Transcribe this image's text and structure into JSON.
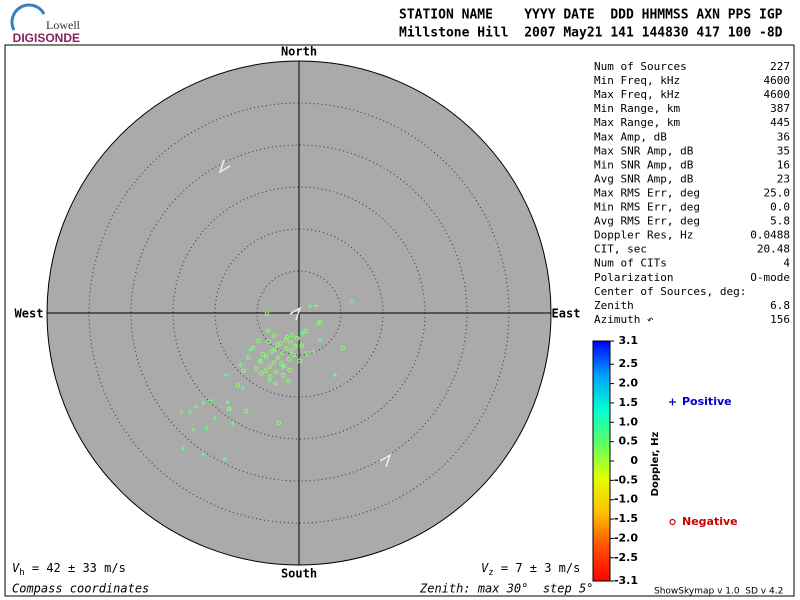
{
  "header": {
    "logo_top": "Lowell",
    "logo_bottom": "DIGISONDE",
    "line1": "STATION NAME    YYYY DATE  DDD HHMMSS AXN PPS IGP",
    "line2": "Millstone Hill  2007 May21 141 144830 417 100 -8D"
  },
  "stats": [
    [
      "Num of Sources",
      "227"
    ],
    [
      "Min Freq, kHz",
      "4600"
    ],
    [
      "Max Freq, kHz",
      "4600"
    ],
    [
      "Min Range, km",
      "387"
    ],
    [
      "Max Range, km",
      "445"
    ],
    [
      "Max Amp, dB",
      "36"
    ],
    [
      "Max SNR Amp, dB",
      "35"
    ],
    [
      "Min SNR Amp, dB",
      "16"
    ],
    [
      "Avg SNR Amp, dB",
      "23"
    ],
    [
      "Max RMS Err, deg",
      "25.0"
    ],
    [
      "Min RMS Err, deg",
      "0.0"
    ],
    [
      "Avg RMS Err, deg",
      "5.8"
    ],
    [
      "Doppler Res, Hz",
      "0.0488"
    ],
    [
      "CIT, sec",
      "20.48"
    ],
    [
      "Num of CITs",
      "4"
    ],
    [
      "Polarization",
      "O-mode"
    ],
    [
      "Center of Sources, deg:",
      ""
    ],
    [
      "     Zenith",
      "6.8"
    ],
    [
      "     Azimuth ↶",
      "156"
    ]
  ],
  "chart_data": {
    "type": "skymap",
    "compass": {
      "north": "North",
      "south": "South",
      "west": "West",
      "east": "East"
    },
    "rlim": [
      0,
      30
    ],
    "rticks": [
      5,
      10,
      15,
      20,
      25,
      30
    ],
    "series": [
      {
        "name": "Positive",
        "marker": "plus",
        "color": "#0000cc",
        "point_color": "#66ff88",
        "x": [
          -13.8,
          -13.0,
          -14.0,
          -12.6,
          -11.4,
          -10.5,
          -11.0,
          -8.8,
          -11.4,
          -8.2,
          -7.9,
          -8.7,
          -6.7,
          -5.8,
          4.3,
          6.3,
          2.3,
          1.3,
          -1.9,
          -4.6,
          -3.5,
          2.5,
          1.7,
          -0.4,
          -7.0,
          -12.3,
          -10.0,
          -8.5,
          0.4,
          2.0
        ],
        "y": [
          -16.1,
          -11.8,
          -11.8,
          -13.9,
          -10.7,
          -10.4,
          -13.7,
          -17.4,
          -16.8,
          -11.5,
          -13.2,
          -7.4,
          -8.9,
          -4.4,
          -7.4,
          1.4,
          -1.2,
          0.8,
          -6.4,
          -5.6,
          -8.0,
          -3.2,
          -4.6,
          -3.8,
          -6.2,
          -11.2,
          -12.5,
          -10.6,
          -2.4,
          0.9
        ]
      },
      {
        "name": "Negative",
        "marker": "circle",
        "color": "#cc0000",
        "point_color": "#88ff66",
        "x": [
          5.2,
          -2.4,
          -6.3,
          -8.3,
          -3.8,
          2.5,
          0.1,
          -1.0,
          -1.5,
          -2.0,
          -2.5,
          -3.0,
          -3.5,
          -4.0,
          -4.5,
          -0.5,
          -1.2,
          -1.8,
          -2.6,
          -3.2,
          -3.9,
          -4.6,
          -5.1,
          -0.2,
          -0.8,
          -1.6,
          -2.2,
          -2.9,
          -3.6,
          -4.3,
          -1.1,
          -1.9,
          -2.7,
          -3.4,
          0.3,
          -0.6,
          -1.4,
          -5.5,
          -6.0,
          -3.0,
          -2.1,
          -0.9,
          0.8,
          -4.8,
          -6.6,
          -1.3,
          -2.8,
          -7.3,
          1.0,
          -3.7
        ],
        "y": [
          -4.2,
          -13.1,
          -11.7,
          -11.4,
          -0.1,
          -1.1,
          -5.7,
          -3.5,
          -4.2,
          -4.8,
          -5.3,
          -5.9,
          -6.4,
          -6.9,
          -7.2,
          -4.0,
          -5.5,
          -6.3,
          -3.8,
          -4.6,
          -5.2,
          -5.8,
          -6.6,
          -3.0,
          -2.6,
          -3.2,
          -3.6,
          -4.3,
          -3.4,
          -4.9,
          -6.8,
          -7.4,
          -7.0,
          -7.6,
          -3.9,
          -5.0,
          -2.9,
          -4.1,
          -5.3,
          -2.7,
          -6.0,
          -4.5,
          -2.2,
          -3.3,
          -6.9,
          -8.1,
          -8.4,
          -8.6,
          -4.8,
          -2.1
        ]
      }
    ],
    "colorbar": {
      "label": "Doppler, Hz",
      "lim": [
        -3.1,
        3.1
      ],
      "colors": [
        "#0000ff",
        "#00a0ff",
        "#00ffd0",
        "#60ff60",
        "#e0ff00",
        "#ffc000",
        "#ff5000",
        "#ff0000"
      ],
      "ticks": [
        3.1,
        2.5,
        {
          "value": 2,
          "label": "2.0"
        },
        1.5,
        {
          "value": 1,
          "label": "1.0"
        },
        0.5,
        0,
        -0.5,
        {
          "value": -1,
          "label": "-1.0"
        },
        -1.5,
        {
          "value": -2,
          "label": "-2.0"
        },
        -2.5,
        -3.1
      ]
    }
  },
  "footer": {
    "vh_symbol": "V",
    "vh_sub": "h",
    "vh_text": " = 42 ± 33 m/s",
    "vz_symbol": "V",
    "vz_sub": "z",
    "vz_text": " = 7 ± 3 m/s",
    "left": "Compass coordinates",
    "middle": "Zenith: max 30°  step 5°",
    "right": "ShowSkymap v 1.0  SD v 4.2"
  }
}
